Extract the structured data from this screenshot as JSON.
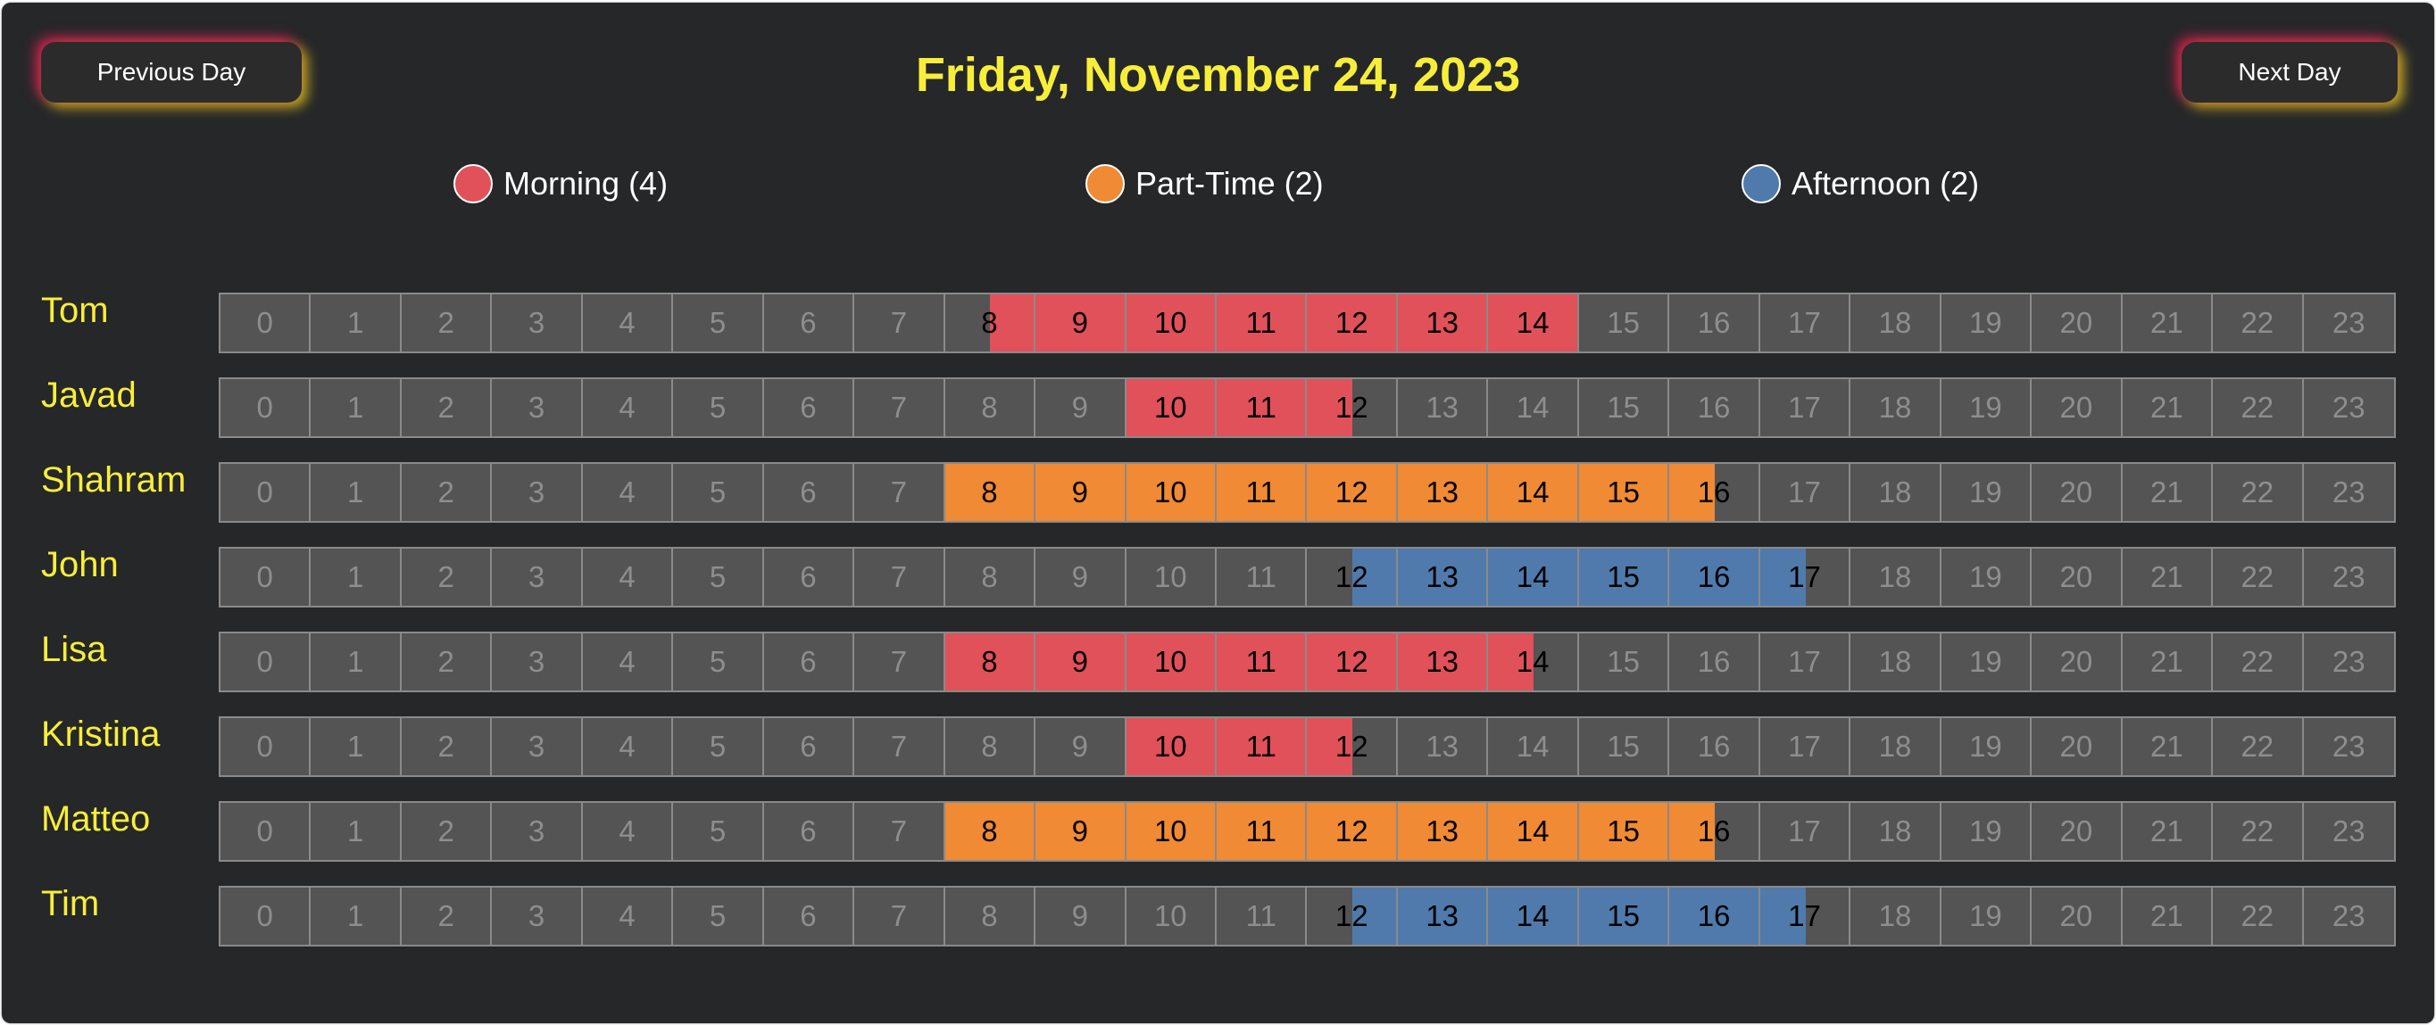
{
  "header": {
    "prev_label": "Previous Day",
    "next_label": "Next Day",
    "date_title": "Friday, November 24, 2023"
  },
  "legend": [
    {
      "label": "Morning (4)",
      "color": "#e1515a",
      "shift": "morning"
    },
    {
      "label": "Part-Time (2)",
      "color": "#f08a34",
      "shift": "part-time"
    },
    {
      "label": "Afternoon (2)",
      "color": "#4f7aab",
      "shift": "afternoon"
    }
  ],
  "colors": {
    "morning": "#e1515a",
    "part-time": "#f08a34",
    "afternoon": "#4f7aab",
    "title": "#f7ee3a",
    "background": "#262729"
  },
  "hours": [
    "0",
    "1",
    "2",
    "3",
    "4",
    "5",
    "6",
    "7",
    "8",
    "9",
    "10",
    "11",
    "12",
    "13",
    "14",
    "15",
    "16",
    "17",
    "18",
    "19",
    "20",
    "21",
    "22",
    "23"
  ],
  "employees": [
    {
      "name": "Tom",
      "shift": "morning",
      "start": 8.5,
      "end": 15.0
    },
    {
      "name": "Javad",
      "shift": "morning",
      "start": 10.0,
      "end": 12.5
    },
    {
      "name": "Shahram",
      "shift": "part-time",
      "start": 8.0,
      "end": 16.5
    },
    {
      "name": "John",
      "shift": "afternoon",
      "start": 12.5,
      "end": 17.5
    },
    {
      "name": "Lisa",
      "shift": "morning",
      "start": 8.0,
      "end": 14.5
    },
    {
      "name": "Kristina",
      "shift": "morning",
      "start": 10.0,
      "end": 12.5
    },
    {
      "name": "Matteo",
      "shift": "part-time",
      "start": 8.0,
      "end": 16.5
    },
    {
      "name": "Tim",
      "shift": "afternoon",
      "start": 12.5,
      "end": 17.5
    }
  ]
}
